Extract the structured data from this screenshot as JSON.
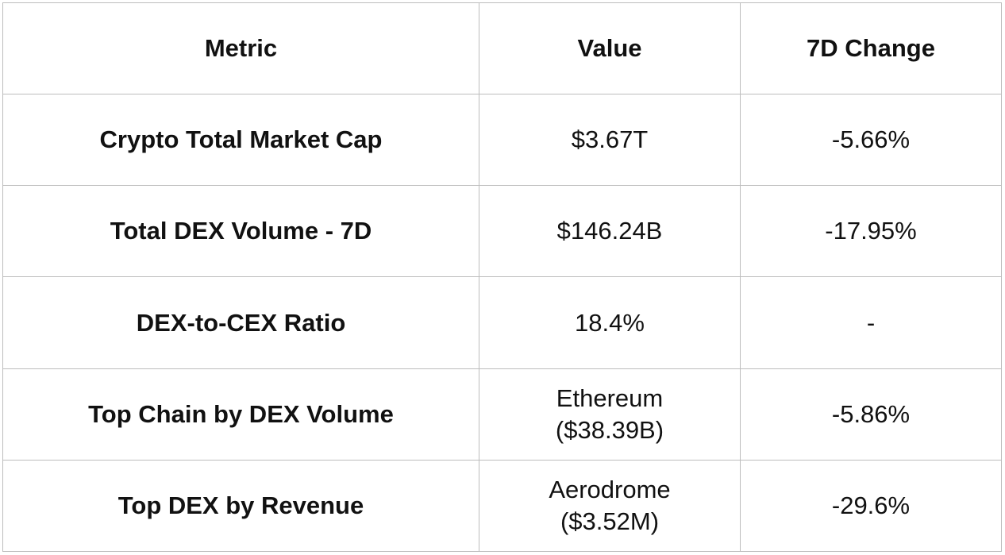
{
  "table": {
    "headers": [
      "Metric",
      "Value",
      "7D Change"
    ],
    "rows": [
      {
        "metric": "Crypto Total Market Cap",
        "value_line1": "$3.67T",
        "value_line2": "",
        "change": "-5.66%"
      },
      {
        "metric": "Total DEX Volume - 7D",
        "value_line1": "$146.24B",
        "value_line2": "",
        "change": "-17.95%"
      },
      {
        "metric": "DEX-to-CEX Ratio",
        "value_line1": "18.4%",
        "value_line2": "",
        "change": "-"
      },
      {
        "metric": "Top Chain by DEX Volume",
        "value_line1": "Ethereum",
        "value_line2": "($38.39B)",
        "change": "-5.86%"
      },
      {
        "metric": "Top DEX by Revenue",
        "value_line1": "Aerodrome",
        "value_line2": "($3.52M)",
        "change": "-29.6%"
      }
    ]
  }
}
